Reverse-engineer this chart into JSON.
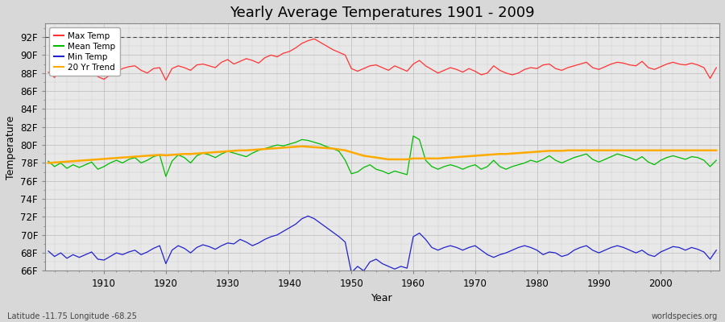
{
  "title": "Yearly Average Temperatures 1901 - 2009",
  "xlabel": "Year",
  "ylabel": "Temperature",
  "lat_lon_label": "Latitude -11.75 Longitude -68.25",
  "source_label": "worldspecies.org",
  "years": [
    1901,
    1902,
    1903,
    1904,
    1905,
    1906,
    1907,
    1908,
    1909,
    1910,
    1911,
    1912,
    1913,
    1914,
    1915,
    1916,
    1917,
    1918,
    1919,
    1920,
    1921,
    1922,
    1923,
    1924,
    1925,
    1926,
    1927,
    1928,
    1929,
    1930,
    1931,
    1932,
    1933,
    1934,
    1935,
    1936,
    1937,
    1938,
    1939,
    1940,
    1941,
    1942,
    1943,
    1944,
    1945,
    1946,
    1947,
    1948,
    1949,
    1950,
    1951,
    1952,
    1953,
    1954,
    1955,
    1956,
    1957,
    1958,
    1959,
    1960,
    1961,
    1962,
    1963,
    1964,
    1965,
    1966,
    1967,
    1968,
    1969,
    1970,
    1971,
    1972,
    1973,
    1974,
    1975,
    1976,
    1977,
    1978,
    1979,
    1980,
    1981,
    1982,
    1983,
    1984,
    1985,
    1986,
    1987,
    1988,
    1989,
    1990,
    1991,
    1992,
    1993,
    1994,
    1995,
    1996,
    1997,
    1998,
    1999,
    2000,
    2001,
    2002,
    2003,
    2004,
    2005,
    2006,
    2007,
    2008,
    2009
  ],
  "max_temp": [
    88.1,
    87.5,
    88.3,
    88.0,
    87.8,
    88.2,
    87.9,
    88.1,
    87.6,
    87.3,
    87.8,
    88.1,
    88.5,
    88.7,
    88.8,
    88.3,
    88.0,
    88.5,
    88.6,
    87.2,
    88.5,
    88.8,
    88.6,
    88.3,
    88.9,
    89.0,
    88.8,
    88.6,
    89.2,
    89.5,
    89.0,
    89.3,
    89.6,
    89.4,
    89.1,
    89.7,
    90.0,
    89.8,
    90.2,
    90.4,
    90.8,
    91.3,
    91.6,
    91.8,
    91.4,
    91.0,
    90.6,
    90.3,
    90.0,
    88.5,
    88.2,
    88.5,
    88.8,
    88.9,
    88.6,
    88.3,
    88.8,
    88.5,
    88.2,
    89.0,
    89.4,
    88.8,
    88.4,
    88.0,
    88.3,
    88.6,
    88.4,
    88.1,
    88.5,
    88.2,
    87.8,
    88.0,
    88.8,
    88.3,
    88.0,
    87.8,
    88.0,
    88.4,
    88.6,
    88.5,
    88.9,
    89.0,
    88.5,
    88.3,
    88.6,
    88.8,
    89.0,
    89.2,
    88.6,
    88.4,
    88.7,
    89.0,
    89.2,
    89.1,
    88.9,
    88.8,
    89.3,
    88.6,
    88.4,
    88.7,
    89.0,
    89.2,
    89.0,
    88.9,
    89.1,
    88.9,
    88.6,
    87.4,
    88.6
  ],
  "mean_temp": [
    78.2,
    77.6,
    78.0,
    77.4,
    77.8,
    77.5,
    77.8,
    78.1,
    77.3,
    77.6,
    78.0,
    78.3,
    78.0,
    78.4,
    78.6,
    78.0,
    78.3,
    78.7,
    78.9,
    76.5,
    78.2,
    78.9,
    78.6,
    78.0,
    78.8,
    79.1,
    78.9,
    78.6,
    79.0,
    79.3,
    79.1,
    78.9,
    78.7,
    79.1,
    79.4,
    79.6,
    79.8,
    80.0,
    79.9,
    80.1,
    80.3,
    80.6,
    80.5,
    80.3,
    80.1,
    79.8,
    79.6,
    79.3,
    78.3,
    76.8,
    77.0,
    77.5,
    77.8,
    77.3,
    77.1,
    76.8,
    77.1,
    76.9,
    76.7,
    81.0,
    80.6,
    78.3,
    77.6,
    77.3,
    77.6,
    77.8,
    77.6,
    77.3,
    77.6,
    77.8,
    77.3,
    77.6,
    78.3,
    77.6,
    77.3,
    77.6,
    77.8,
    78.0,
    78.3,
    78.1,
    78.4,
    78.8,
    78.3,
    78.0,
    78.3,
    78.6,
    78.8,
    79.0,
    78.4,
    78.1,
    78.4,
    78.7,
    79.0,
    78.8,
    78.6,
    78.3,
    78.7,
    78.1,
    77.8,
    78.3,
    78.6,
    78.8,
    78.6,
    78.4,
    78.7,
    78.6,
    78.3,
    77.6,
    78.3
  ],
  "min_temp": [
    68.2,
    67.6,
    68.0,
    67.4,
    67.8,
    67.5,
    67.8,
    68.1,
    67.3,
    67.2,
    67.6,
    68.0,
    67.8,
    68.1,
    68.3,
    67.8,
    68.1,
    68.5,
    68.8,
    66.8,
    68.3,
    68.8,
    68.5,
    68.0,
    68.6,
    68.9,
    68.7,
    68.4,
    68.8,
    69.1,
    69.0,
    69.5,
    69.2,
    68.8,
    69.1,
    69.5,
    69.8,
    70.0,
    70.4,
    70.8,
    71.2,
    71.8,
    72.1,
    71.8,
    71.3,
    70.8,
    70.3,
    69.8,
    69.2,
    65.8,
    66.5,
    66.0,
    67.0,
    67.3,
    66.8,
    66.5,
    66.2,
    66.5,
    66.3,
    69.8,
    70.2,
    69.5,
    68.6,
    68.3,
    68.6,
    68.8,
    68.6,
    68.3,
    68.6,
    68.8,
    68.3,
    67.8,
    67.5,
    67.8,
    68.0,
    68.3,
    68.6,
    68.8,
    68.6,
    68.3,
    67.8,
    68.1,
    68.0,
    67.6,
    67.8,
    68.3,
    68.6,
    68.8,
    68.3,
    68.0,
    68.3,
    68.6,
    68.8,
    68.6,
    68.3,
    68.0,
    68.3,
    67.8,
    67.6,
    68.1,
    68.4,
    68.7,
    68.6,
    68.3,
    68.6,
    68.4,
    68.1,
    67.3,
    68.3
  ],
  "trend_20yr": [
    78.0,
    78.05,
    78.1,
    78.15,
    78.2,
    78.25,
    78.3,
    78.35,
    78.4,
    78.45,
    78.5,
    78.55,
    78.6,
    78.65,
    78.7,
    78.75,
    78.8,
    78.85,
    78.9,
    78.85,
    78.9,
    78.95,
    79.0,
    79.0,
    79.05,
    79.1,
    79.15,
    79.2,
    79.25,
    79.3,
    79.35,
    79.4,
    79.4,
    79.45,
    79.5,
    79.55,
    79.6,
    79.65,
    79.7,
    79.75,
    79.8,
    79.85,
    79.8,
    79.75,
    79.7,
    79.65,
    79.6,
    79.5,
    79.4,
    79.2,
    79.0,
    78.8,
    78.7,
    78.6,
    78.5,
    78.4,
    78.4,
    78.4,
    78.4,
    78.5,
    78.5,
    78.5,
    78.5,
    78.5,
    78.55,
    78.6,
    78.65,
    78.7,
    78.75,
    78.8,
    78.85,
    78.9,
    78.95,
    79.0,
    79.0,
    79.05,
    79.1,
    79.15,
    79.2,
    79.25,
    79.3,
    79.35,
    79.35,
    79.35,
    79.4,
    79.4,
    79.4,
    79.4,
    79.4,
    79.4,
    79.4,
    79.4,
    79.4,
    79.4,
    79.4,
    79.4,
    79.4,
    79.4,
    79.4,
    79.4,
    79.4,
    79.4,
    79.4,
    79.4,
    79.4,
    79.4,
    79.4,
    79.4,
    79.4
  ],
  "max_color": "#ff3333",
  "mean_color": "#00bb00",
  "min_color": "#2222cc",
  "trend_color": "#ffaa00",
  "bg_color": "#d8d8d8",
  "plot_bg_color": "#e8e8e8",
  "grid_minor_color": "#cccccc",
  "grid_major_color": "#bbbbbb",
  "top_dashed_line": 92.0,
  "ylim_min": 66.0,
  "ylim_max": 93.5,
  "yticks": [
    66,
    68,
    70,
    72,
    74,
    76,
    78,
    80,
    82,
    84,
    86,
    88,
    90,
    92
  ],
  "xticks": [
    1910,
    1920,
    1930,
    1940,
    1950,
    1960,
    1970,
    1980,
    1990,
    2000
  ],
  "title_fontsize": 13,
  "axis_label_fontsize": 9,
  "tick_fontsize": 8.5
}
